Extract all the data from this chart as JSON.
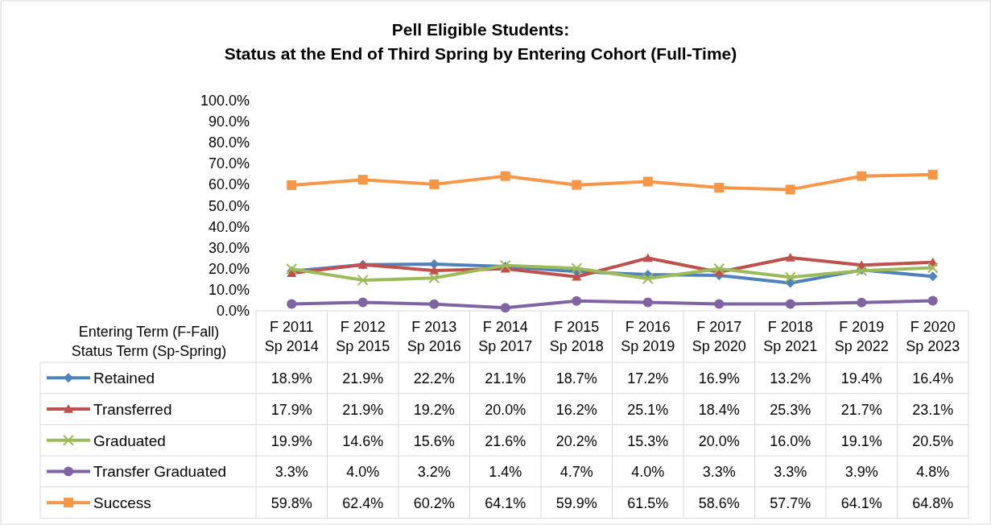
{
  "chart_data": {
    "type": "line",
    "title": "Pell Eligible Students:\nStatus at the End of Third Spring by Entering Cohort (Full-Time)",
    "xlabel": "Entering Term (F-Fall)\nStatus Term (Sp-Spring)",
    "categories": [
      "F 2011\nSp 2014",
      "F 2012\nSp 2015",
      "F 2013\nSp 2016",
      "F 2014\nSp 2017",
      "F 2015\nSp 2018",
      "F 2016\nSp 2019",
      "F 2017\nSp 2020",
      "F 2018\nSp 2021",
      "F 2019\nSp 2022",
      "F 2020\nSp 2023"
    ],
    "ylim": [
      0,
      100
    ],
    "yticks": [
      {
        "value": 0,
        "label": "0.0%"
      },
      {
        "value": 10,
        "label": "10.0%"
      },
      {
        "value": 20,
        "label": "20.0%"
      },
      {
        "value": 30,
        "label": "30.0%"
      },
      {
        "value": 40,
        "label": "40.0%"
      },
      {
        "value": 50,
        "label": "50.0%"
      },
      {
        "value": 60,
        "label": "60.0%"
      },
      {
        "value": 70,
        "label": "70.0%"
      },
      {
        "value": 80,
        "label": "80.0%"
      },
      {
        "value": 90,
        "label": "90.0%"
      },
      {
        "value": 100,
        "label": "100.0%"
      }
    ],
    "legend": "bottom",
    "grid": false,
    "series": [
      {
        "name": "Retained",
        "color": "#4f81bd",
        "marker": "diamond",
        "values": [
          18.9,
          21.9,
          22.2,
          21.1,
          18.7,
          17.2,
          16.9,
          13.2,
          19.4,
          16.4
        ],
        "value_labels": [
          "18.9%",
          "21.9%",
          "22.2%",
          "21.1%",
          "18.7%",
          "17.2%",
          "16.9%",
          "13.2%",
          "19.4%",
          "16.4%"
        ]
      },
      {
        "name": "Transferred",
        "color": "#c0504d",
        "marker": "triangle",
        "values": [
          17.9,
          21.9,
          19.2,
          20.0,
          16.2,
          25.1,
          18.4,
          25.3,
          21.7,
          23.1
        ],
        "value_labels": [
          "17.9%",
          "21.9%",
          "19.2%",
          "20.0%",
          "16.2%",
          "25.1%",
          "18.4%",
          "25.3%",
          "21.7%",
          "23.1%"
        ]
      },
      {
        "name": "Graduated",
        "color": "#9bbb59",
        "marker": "cross",
        "values": [
          19.9,
          14.6,
          15.6,
          21.6,
          20.2,
          15.3,
          20.0,
          16.0,
          19.1,
          20.5
        ],
        "value_labels": [
          "19.9%",
          "14.6%",
          "15.6%",
          "21.6%",
          "20.2%",
          "15.3%",
          "20.0%",
          "16.0%",
          "19.1%",
          "20.5%"
        ]
      },
      {
        "name": "Transfer Graduated",
        "color": "#8064a2",
        "marker": "circle",
        "values": [
          3.3,
          4.0,
          3.2,
          1.4,
          4.7,
          4.0,
          3.3,
          3.3,
          3.9,
          4.8
        ],
        "value_labels": [
          "3.3%",
          "4.0%",
          "3.2%",
          "1.4%",
          "4.7%",
          "4.0%",
          "3.3%",
          "3.3%",
          "3.9%",
          "4.8%"
        ]
      },
      {
        "name": "Success",
        "color": "#f79646",
        "marker": "square",
        "values": [
          59.8,
          62.4,
          60.2,
          64.1,
          59.9,
          61.5,
          58.6,
          57.7,
          64.1,
          64.8
        ],
        "value_labels": [
          "59.8%",
          "62.4%",
          "60.2%",
          "64.1%",
          "59.9%",
          "61.5%",
          "58.6%",
          "57.7%",
          "64.1%",
          "64.8%"
        ]
      }
    ]
  }
}
